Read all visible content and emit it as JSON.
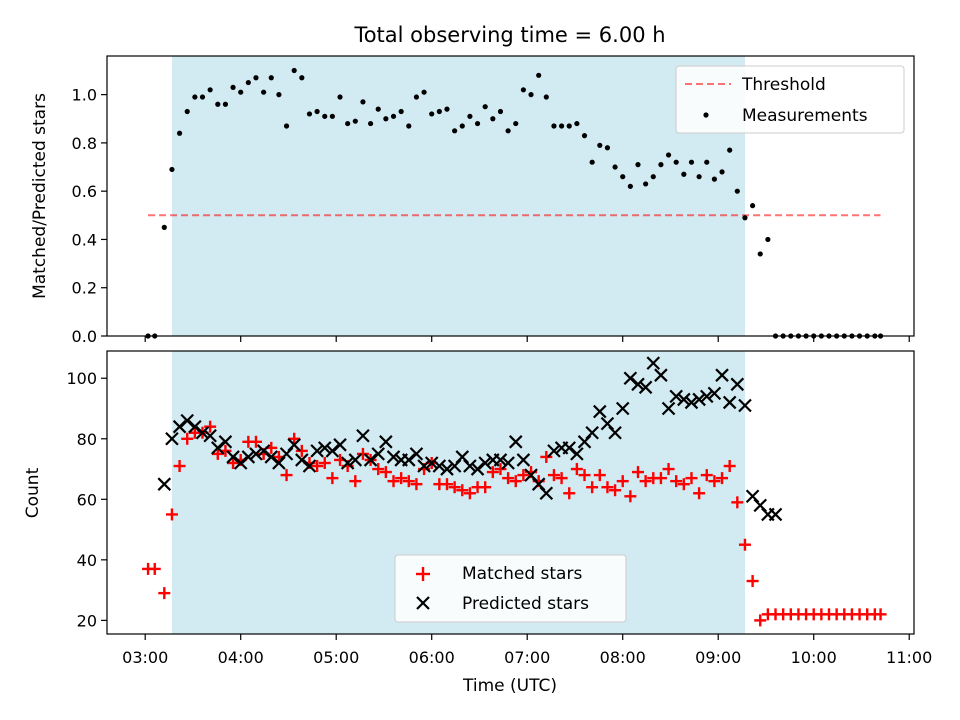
{
  "title": "Total observing time = 6.00 h",
  "colors": {
    "span": "#add8e6",
    "threshold": "#ff0000",
    "measurements": "#000000",
    "matched": "#ff0000",
    "predicted": "#000000"
  },
  "chart_data": [
    {
      "type": "scatter",
      "ylabel": "Matched/Predicted stars",
      "xlim": [
        2.6,
        11.05
      ],
      "ylim": [
        0,
        1.16
      ],
      "yticks": [
        0.0,
        0.2,
        0.4,
        0.6,
        0.8,
        1.0
      ],
      "ytick_labels": [
        "0.0",
        "0.2",
        "0.4",
        "0.6",
        "0.8",
        "1.0"
      ],
      "observing_span": [
        3.28,
        9.28
      ],
      "legend_position": "upper right",
      "threshold": {
        "name": "Threshold",
        "value": 0.5,
        "x_range": [
          3.03,
          10.7
        ]
      },
      "series": [
        {
          "name": "Measurements",
          "marker": "dot",
          "x": [
            3.03,
            3.1,
            3.2,
            3.28,
            3.36,
            3.44,
            3.52,
            3.6,
            3.68,
            3.76,
            3.84,
            3.92,
            4.0,
            4.08,
            4.16,
            4.24,
            4.32,
            4.4,
            4.48,
            4.56,
            4.64,
            4.72,
            4.8,
            4.88,
            4.96,
            5.04,
            5.12,
            5.2,
            5.28,
            5.36,
            5.44,
            5.52,
            5.6,
            5.68,
            5.76,
            5.84,
            5.92,
            6.0,
            6.08,
            6.16,
            6.24,
            6.32,
            6.4,
            6.48,
            6.56,
            6.64,
            6.72,
            6.8,
            6.88,
            6.96,
            7.04,
            7.12,
            7.2,
            7.28,
            7.36,
            7.44,
            7.52,
            7.6,
            7.68,
            7.76,
            7.84,
            7.92,
            8.0,
            8.08,
            8.16,
            8.24,
            8.32,
            8.4,
            8.48,
            8.56,
            8.64,
            8.72,
            8.8,
            8.88,
            8.96,
            9.04,
            9.12,
            9.2,
            9.28,
            9.36,
            9.44,
            9.52,
            9.6,
            9.68,
            9.76,
            9.84,
            9.92,
            10.0,
            10.08,
            10.16,
            10.24,
            10.32,
            10.4,
            10.48,
            10.56,
            10.64,
            10.7
          ],
          "y": [
            0.0,
            0.0,
            0.45,
            0.69,
            0.84,
            0.93,
            0.99,
            0.99,
            1.02,
            0.96,
            0.96,
            1.03,
            1.01,
            1.05,
            1.07,
            1.01,
            1.07,
            1.0,
            0.87,
            1.1,
            1.07,
            0.92,
            0.93,
            0.91,
            0.91,
            0.99,
            0.88,
            0.89,
            0.97,
            0.88,
            0.94,
            0.9,
            0.91,
            0.93,
            0.87,
            0.99,
            1.01,
            0.92,
            0.93,
            0.94,
            0.85,
            0.87,
            0.91,
            0.88,
            0.95,
            0.9,
            0.93,
            0.85,
            0.88,
            1.02,
            1.0,
            1.08,
            0.99,
            0.87,
            0.87,
            0.87,
            0.88,
            0.83,
            0.72,
            0.79,
            0.78,
            0.7,
            0.66,
            0.62,
            0.71,
            0.63,
            0.66,
            0.71,
            0.75,
            0.72,
            0.67,
            0.72,
            0.66,
            0.72,
            0.65,
            0.68,
            0.77,
            0.6,
            0.49,
            0.54,
            0.34,
            0.4,
            0.0,
            0.0,
            0.0,
            0.0,
            0.0,
            0.0,
            0.0,
            0.0,
            0.0,
            0.0,
            0.0,
            0.0,
            0.0,
            0.0,
            0.0
          ]
        }
      ]
    },
    {
      "type": "scatter",
      "ylabel": "Count",
      "xlabel": "Time (UTC)",
      "xlim": [
        2.6,
        11.05
      ],
      "ylim": [
        15.5,
        109
      ],
      "xticks": [
        3,
        4,
        5,
        6,
        7,
        8,
        9,
        10,
        11
      ],
      "xtick_labels": [
        "03:00",
        "04:00",
        "05:00",
        "06:00",
        "07:00",
        "08:00",
        "09:00",
        "10:00",
        "11:00"
      ],
      "yticks": [
        20,
        40,
        60,
        80,
        100
      ],
      "ytick_labels": [
        "20",
        "40",
        "60",
        "80",
        "100"
      ],
      "observing_span": [
        3.28,
        9.28
      ],
      "legend_position": "lower center",
      "series": [
        {
          "name": "Matched stars",
          "marker": "plus",
          "x": [
            3.03,
            3.1,
            3.2,
            3.28,
            3.36,
            3.44,
            3.52,
            3.6,
            3.68,
            3.76,
            3.84,
            3.92,
            4.0,
            4.08,
            4.16,
            4.24,
            4.32,
            4.4,
            4.48,
            4.56,
            4.64,
            4.72,
            4.8,
            4.88,
            4.96,
            5.04,
            5.12,
            5.2,
            5.28,
            5.36,
            5.44,
            5.52,
            5.6,
            5.68,
            5.76,
            5.84,
            5.92,
            6.0,
            6.08,
            6.16,
            6.24,
            6.32,
            6.4,
            6.48,
            6.56,
            6.64,
            6.72,
            6.8,
            6.88,
            6.96,
            7.04,
            7.12,
            7.2,
            7.28,
            7.36,
            7.44,
            7.52,
            7.6,
            7.68,
            7.76,
            7.84,
            7.92,
            8.0,
            8.08,
            8.16,
            8.24,
            8.32,
            8.4,
            8.48,
            8.56,
            8.64,
            8.72,
            8.8,
            8.88,
            8.96,
            9.04,
            9.12,
            9.2,
            9.28,
            9.36,
            9.44,
            9.52,
            9.6,
            9.68,
            9.76,
            9.84,
            9.92,
            10.0,
            10.08,
            10.16,
            10.24,
            10.32,
            10.4,
            10.48,
            10.56,
            10.64,
            10.7
          ],
          "y": [
            37,
            37,
            29,
            55,
            71,
            80,
            82,
            82,
            84,
            75,
            76,
            72,
            73,
            79,
            79,
            75,
            77,
            74,
            68,
            80,
            76,
            72,
            71,
            72,
            67,
            73,
            71,
            66,
            75,
            73,
            70,
            69,
            66,
            67,
            66,
            65,
            70,
            72,
            65,
            65,
            64,
            63,
            62,
            64,
            64,
            69,
            70,
            67,
            66,
            68,
            69,
            66,
            74,
            68,
            67,
            62,
            70,
            68,
            64,
            68,
            64,
            63,
            66,
            61,
            69,
            66,
            67,
            67,
            70,
            66,
            65,
            67,
            62,
            68,
            66,
            67,
            71,
            59,
            45,
            33,
            20,
            22,
            22,
            22,
            22,
            22,
            22,
            22,
            22,
            22,
            22,
            22,
            22,
            22,
            22,
            22,
            22
          ]
        },
        {
          "name": "Predicted stars",
          "marker": "x",
          "x": [
            3.2,
            3.28,
            3.36,
            3.44,
            3.52,
            3.6,
            3.68,
            3.76,
            3.84,
            3.92,
            4.0,
            4.08,
            4.16,
            4.24,
            4.32,
            4.4,
            4.48,
            4.56,
            4.64,
            4.72,
            4.8,
            4.88,
            4.96,
            5.04,
            5.12,
            5.2,
            5.28,
            5.36,
            5.44,
            5.52,
            5.6,
            5.68,
            5.76,
            5.84,
            5.92,
            6.0,
            6.08,
            6.16,
            6.24,
            6.32,
            6.4,
            6.48,
            6.56,
            6.64,
            6.72,
            6.8,
            6.88,
            6.96,
            7.04,
            7.12,
            7.2,
            7.28,
            7.36,
            7.44,
            7.52,
            7.6,
            7.68,
            7.76,
            7.84,
            7.92,
            8.0,
            8.08,
            8.16,
            8.24,
            8.32,
            8.4,
            8.48,
            8.56,
            8.64,
            8.72,
            8.8,
            8.88,
            8.96,
            9.04,
            9.12,
            9.2,
            9.28,
            9.36,
            9.44,
            9.52,
            9.6
          ],
          "y": [
            65,
            80,
            84,
            86,
            84,
            82,
            81,
            77,
            79,
            74,
            72,
            74,
            75,
            76,
            74,
            72,
            75,
            78,
            73,
            71,
            76,
            77,
            76,
            78,
            72,
            73,
            81,
            73,
            75,
            79,
            74,
            73,
            73,
            75,
            71,
            72,
            71,
            70,
            71,
            74,
            71,
            70,
            72,
            73,
            73,
            72,
            79,
            73,
            68,
            65,
            62,
            76,
            77,
            77,
            75,
            79,
            82,
            89,
            85,
            82,
            90,
            100,
            98,
            97,
            105,
            101,
            90,
            94,
            93,
            92,
            93,
            94,
            95,
            101,
            92,
            98,
            91,
            61,
            58,
            55,
            55
          ]
        }
      ]
    }
  ]
}
